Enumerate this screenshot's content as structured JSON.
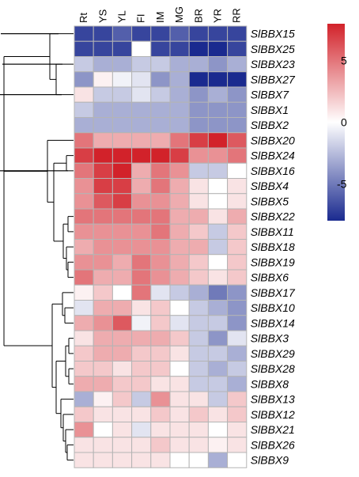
{
  "chart_data": {
    "type": "heatmap",
    "columns": [
      "Rt",
      "YS",
      "YL",
      "FI",
      "IM",
      "MG",
      "BR",
      "YR",
      "RR"
    ],
    "rows": [
      "SlBBX15",
      "SlBBX25",
      "SlBBX23",
      "SlBBX27",
      "SlBBX7",
      "SlBBX1",
      "SlBBX2",
      "SlBBX20",
      "SlBBX24",
      "SlBBX16",
      "SlBBX4",
      "SlBBX5",
      "SlBBX22",
      "SlBBX11",
      "SlBBX18",
      "SlBBX19",
      "SlBBX6",
      "SlBBX17",
      "SlBBX10",
      "SlBBX14",
      "SlBBX3",
      "SlBBX29",
      "SlBBX28",
      "SlBBX8",
      "SlBBX13",
      "SlBBX12",
      "SlBBX21",
      "SlBBX26",
      "SlBBX9"
    ],
    "values": [
      [
        -7,
        -7,
        -6,
        -7,
        -7,
        -6,
        -7,
        -7,
        -7
      ],
      [
        -7,
        -7,
        -7,
        0,
        -7,
        -7,
        -8,
        -8,
        -7
      ],
      [
        -2,
        -3,
        -3,
        -2,
        -2,
        -3,
        -3,
        -4,
        -3
      ],
      [
        -4,
        0.5,
        -0.5,
        -1,
        -4,
        -3,
        -8,
        -8,
        -8
      ],
      [
        1,
        -2,
        -2,
        -1,
        -2,
        -3,
        -4,
        -3,
        -4
      ],
      [
        -2,
        -3,
        -3,
        -3,
        -3,
        -3,
        -4,
        -4,
        -4
      ],
      [
        -3,
        -3,
        -3,
        -3,
        -3,
        -3,
        -4,
        -4,
        -4
      ],
      [
        5,
        3,
        3,
        3,
        3,
        5,
        7,
        8,
        6
      ],
      [
        7,
        8,
        8,
        8,
        8,
        7,
        4,
        4,
        5
      ],
      [
        5,
        7,
        8,
        3,
        5,
        4,
        -2,
        -2,
        0
      ],
      [
        4,
        7,
        7,
        3,
        5,
        3,
        1,
        0,
        1
      ],
      [
        4,
        6,
        7,
        4,
        4,
        3,
        1,
        0,
        1
      ],
      [
        5,
        5,
        5,
        5,
        5,
        3,
        3,
        1,
        3
      ],
      [
        4,
        4,
        4,
        4,
        5,
        3,
        2,
        -2,
        2
      ],
      [
        3,
        4,
        4,
        4,
        4,
        3,
        3,
        -2,
        2
      ],
      [
        4,
        4,
        3,
        5,
        4,
        3,
        2,
        0,
        2
      ],
      [
        5,
        3,
        3,
        5,
        4,
        3,
        2,
        1,
        2
      ],
      [
        0.5,
        2,
        0,
        5,
        -1,
        -2,
        -3,
        -5,
        -4
      ],
      [
        -1,
        3,
        3,
        1,
        2,
        0,
        -2,
        -3,
        -4
      ],
      [
        3,
        4,
        6,
        -0.5,
        2,
        -1,
        -2,
        -2,
        -4
      ],
      [
        1,
        3,
        3,
        3,
        3,
        2,
        -2,
        -4,
        -1
      ],
      [
        2,
        3,
        3,
        2,
        2,
        1,
        -2,
        -2,
        -3
      ],
      [
        2,
        2,
        1,
        2,
        2,
        0,
        -2,
        -3,
        -2
      ],
      [
        3,
        3,
        2,
        2,
        1,
        1,
        -2,
        -2,
        -3
      ],
      [
        -3,
        0.5,
        2,
        -2,
        4,
        1,
        1,
        -2,
        2
      ],
      [
        2,
        1,
        1,
        1,
        2,
        1,
        2,
        1,
        2
      ],
      [
        4,
        0,
        1,
        -1,
        1,
        1,
        1,
        0,
        1
      ],
      [
        1,
        1,
        1,
        1,
        2,
        1,
        1,
        0.5,
        1
      ],
      [
        1,
        1,
        1,
        1,
        1,
        0,
        0,
        -3,
        0
      ]
    ],
    "colorbar": {
      "range": [
        -8,
        8
      ],
      "ticks": [
        "5",
        "0",
        "-5"
      ],
      "tick_values": [
        5,
        0,
        -5
      ],
      "low_color": "#1a2a8f",
      "mid_color": "#ffffff",
      "high_color": "#d2222a"
    },
    "row_dendrogram": true,
    "grid": true
  }
}
